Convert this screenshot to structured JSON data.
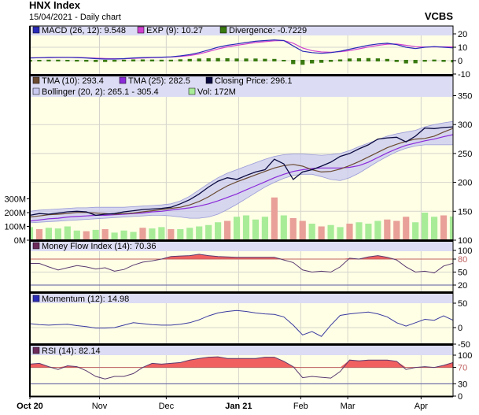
{
  "header": {
    "title": "HNX Index",
    "subtitle": "15/04/2021 - Daily chart",
    "brand": "VCBS"
  },
  "colors": {
    "plot_bg": "#ffffe6",
    "legend_band": "#dcdcf4",
    "macd": "#2a2ab8",
    "exp": "#d040d0",
    "divergence": "#3a7a10",
    "tma10": "#6a4a30",
    "tma25": "#8a2ad8",
    "close": "#0a0a40",
    "bollinger_fill": "#c8c8f0",
    "bollinger_line": "#9a9ad8",
    "vol_up": "#a8ec98",
    "vol_down": "#e8a098",
    "osc_line": "#5a3a70",
    "osc_fill": "#f06060",
    "momentum": "#3a3aa0",
    "threshold": "#c06060",
    "baseline": "#5a5aa0"
  },
  "chart_data": [
    {
      "type": "line",
      "panel": "MACD",
      "legend": [
        "MACD (26, 12): 9.548",
        "EXP (9): 10.27",
        "Divergence: -0.7229"
      ],
      "yticks": [
        20,
        10,
        0,
        -10
      ],
      "ylim": [
        -10,
        20
      ],
      "series": [
        {
          "name": "MACD (26, 12)",
          "values": [
            2,
            2.2,
            2.4,
            2.5,
            2.5,
            2.3,
            2,
            1.5,
            1.2,
            1.2,
            1.5,
            2,
            2.3,
            2.5,
            2.6,
            2.8,
            3.5,
            4.5,
            6,
            8,
            10,
            11.5,
            12.5,
            13.5,
            14.5,
            15,
            15.5,
            15,
            11,
            7,
            6,
            5.5,
            6,
            7,
            8.5,
            10,
            11.5,
            12.5,
            13,
            12,
            10,
            9,
            10,
            10.5,
            10,
            9.548
          ]
        },
        {
          "name": "EXP (9)",
          "values": [
            2.2,
            2.2,
            2.3,
            2.4,
            2.5,
            2.4,
            2.2,
            1.9,
            1.6,
            1.4,
            1.4,
            1.7,
            2,
            2.3,
            2.5,
            2.7,
            3.1,
            3.8,
            5,
            6.8,
            8.7,
            10.3,
            11.5,
            12.5,
            13.5,
            14.2,
            14.8,
            15,
            13,
            9.5,
            7.5,
            6.5,
            6.3,
            6.7,
            7.5,
            8.8,
            10.2,
            11.4,
            12.3,
            12.4,
            11.5,
            10.4,
            10.2,
            10.3,
            10.3,
            10.27
          ]
        },
        {
          "name": "Divergence",
          "values": [
            -0.2,
            0,
            0.1,
            0.1,
            0,
            -0.1,
            -0.2,
            -0.4,
            -0.4,
            -0.2,
            0.1,
            0.3,
            0.3,
            0.2,
            0.1,
            0.1,
            0.4,
            0.7,
            1,
            1.2,
            1.3,
            1.2,
            1,
            1,
            1,
            0.8,
            0.7,
            0,
            -2,
            -2.5,
            -1.5,
            -1,
            -0.3,
            0.3,
            1,
            1.2,
            1.3,
            1.1,
            0.7,
            -0.4,
            -1.5,
            -1.4,
            -0.2,
            0.2,
            -0.3,
            -0.7229
          ]
        }
      ]
    },
    {
      "type": "line",
      "panel": "Price",
      "legend": [
        "TMA (10): 293.4",
        "TMA (25): 282.5",
        "Closing Price: 296.1",
        "Bollinger (20, 2): 265.1 - 305.4",
        "Vol: 172M"
      ],
      "yticks": [
        350,
        300,
        250,
        200,
        150,
        100
      ],
      "ylim": [
        100,
        350
      ],
      "volume_ticks": [
        "300M",
        "200M",
        "100M",
        "0M"
      ],
      "volume_ylim_millions": [
        0,
        300
      ],
      "series": [
        {
          "name": "Closing Price",
          "values": [
            143,
            146,
            145,
            147,
            149,
            150,
            149,
            143,
            145,
            146,
            149,
            151,
            153,
            154,
            155,
            157,
            163,
            170,
            180,
            192,
            202,
            208,
            205,
            212,
            218,
            222,
            240,
            232,
            205,
            218,
            222,
            228,
            235,
            245,
            250,
            258,
            265,
            275,
            277,
            278,
            270,
            280,
            294,
            293,
            295,
            296.1
          ]
        },
        {
          "name": "TMA (10)",
          "values": [
            140,
            142,
            144,
            145,
            146,
            148,
            148,
            147,
            146,
            145,
            146,
            147,
            149,
            151,
            153,
            155,
            157,
            161,
            167,
            175,
            185,
            194,
            201,
            207,
            213,
            219,
            225,
            229,
            231,
            228,
            222,
            218,
            219,
            223,
            229,
            236,
            244,
            252,
            260,
            266,
            271,
            275,
            276,
            280,
            287,
            293.4
          ]
        },
        {
          "name": "TMA (25)",
          "values": [
            133,
            135,
            137,
            138,
            140,
            141,
            142,
            143,
            143,
            144,
            145,
            146,
            147,
            149,
            150,
            152,
            154,
            156,
            159,
            163,
            168,
            174,
            180,
            187,
            194,
            201,
            208,
            214,
            219,
            222,
            224,
            225,
            225,
            225,
            226,
            229,
            235,
            243,
            251,
            258,
            264,
            268,
            272,
            275,
            279,
            282.5
          ]
        },
        {
          "name": "Bollinger upper",
          "values": [
            150,
            152,
            153,
            154,
            155,
            156,
            156,
            157,
            157,
            157,
            157,
            158,
            159,
            160,
            161,
            163,
            168,
            176,
            187,
            198,
            208,
            216,
            222,
            228,
            234,
            240,
            245,
            248,
            249,
            249,
            248,
            247,
            248,
            250,
            255,
            262,
            268,
            274,
            280,
            284,
            287,
            290,
            296,
            300,
            303,
            305.4
          ]
        },
        {
          "name": "Bollinger lower",
          "values": [
            130,
            131,
            132,
            133,
            134,
            135,
            136,
            137,
            138,
            139,
            140,
            141,
            142,
            143,
            143,
            142,
            140,
            138,
            138,
            140,
            145,
            153,
            162,
            172,
            182,
            192,
            200,
            207,
            212,
            214,
            214,
            210,
            205,
            203,
            208,
            216,
            226,
            236,
            245,
            253,
            259,
            263,
            265,
            265,
            265,
            265.1
          ]
        }
      ],
      "volume_millions": [
        95,
        80,
        90,
        85,
        100,
        70,
        65,
        75,
        80,
        55,
        70,
        60,
        90,
        85,
        95,
        80,
        80,
        90,
        100,
        110,
        130,
        140,
        170,
        180,
        150,
        170,
        310,
        180,
        160,
        140,
        120,
        100,
        110,
        95,
        120,
        130,
        120,
        140,
        150,
        140,
        170,
        130,
        200,
        170,
        180,
        172
      ],
      "volume_direction": [
        "up",
        "down",
        "up",
        "up",
        "up",
        "up",
        "down",
        "up",
        "down",
        "up",
        "up",
        "up",
        "down",
        "up",
        "up",
        "down",
        "up",
        "up",
        "up",
        "up",
        "up",
        "down",
        "up",
        "up",
        "up",
        "up",
        "down",
        "up",
        "down",
        "down",
        "up",
        "down",
        "up",
        "up",
        "down",
        "up",
        "up",
        "up",
        "down",
        "down",
        "down",
        "up",
        "up",
        "up",
        "down",
        "up"
      ]
    },
    {
      "type": "area",
      "panel": "Money Flow Index",
      "legend": [
        "Money Flow Index (14): 70.36"
      ],
      "yticks": [
        100,
        80,
        50,
        20
      ],
      "ylim": [
        0,
        100
      ],
      "threshold": 80,
      "values": [
        70,
        70,
        62,
        55,
        60,
        65,
        62,
        57,
        60,
        52,
        56,
        66,
        73,
        76,
        80,
        86,
        87,
        88,
        91,
        88,
        86,
        85,
        84,
        84,
        84,
        84,
        84,
        78,
        72,
        55,
        50,
        52,
        50,
        62,
        82,
        80,
        85,
        88,
        84,
        78,
        62,
        50,
        52,
        48,
        64,
        70.36
      ]
    },
    {
      "type": "line",
      "panel": "Momentum",
      "legend": [
        "Momentum (12): 14.98"
      ],
      "yticks": [
        50,
        0,
        -50
      ],
      "ylim": [
        -50,
        50
      ],
      "values": [
        8,
        6,
        5,
        6,
        7,
        4,
        2,
        -1,
        -1,
        0,
        5,
        10,
        8,
        6,
        5,
        5,
        7,
        10,
        16,
        24,
        30,
        33,
        35,
        33,
        30,
        28,
        27,
        22,
        5,
        -15,
        -8,
        -18,
        5,
        25,
        28,
        30,
        32,
        28,
        22,
        10,
        3,
        10,
        17,
        15,
        24,
        14.98
      ]
    },
    {
      "type": "area",
      "panel": "RSI",
      "legend": [
        "RSI (14): 82.14"
      ],
      "yticks": [
        100,
        70,
        30,
        0
      ],
      "ylim": [
        0,
        100
      ],
      "threshold": 70,
      "values": [
        78,
        80,
        72,
        65,
        74,
        72,
        62,
        48,
        42,
        48,
        48,
        55,
        70,
        80,
        78,
        80,
        82,
        88,
        92,
        95,
        96,
        92,
        92,
        92,
        92,
        95,
        95,
        85,
        72,
        45,
        48,
        46,
        44,
        60,
        88,
        86,
        88,
        88,
        88,
        85,
        65,
        70,
        72,
        70,
        75,
        82.14
      ]
    }
  ],
  "x_axis": {
    "ticks": [
      {
        "label": "Oct 20",
        "at": 0,
        "bold": true
      },
      {
        "label": "Nov",
        "at": 7.4
      },
      {
        "label": "Dec",
        "at": 14.5
      },
      {
        "label": "Jan 21",
        "at": 22.2,
        "bold": true
      },
      {
        "label": "Feb",
        "at": 28.8
      },
      {
        "label": "Mar",
        "at": 33.8
      },
      {
        "label": "Apr",
        "at": 41.6
      }
    ]
  }
}
